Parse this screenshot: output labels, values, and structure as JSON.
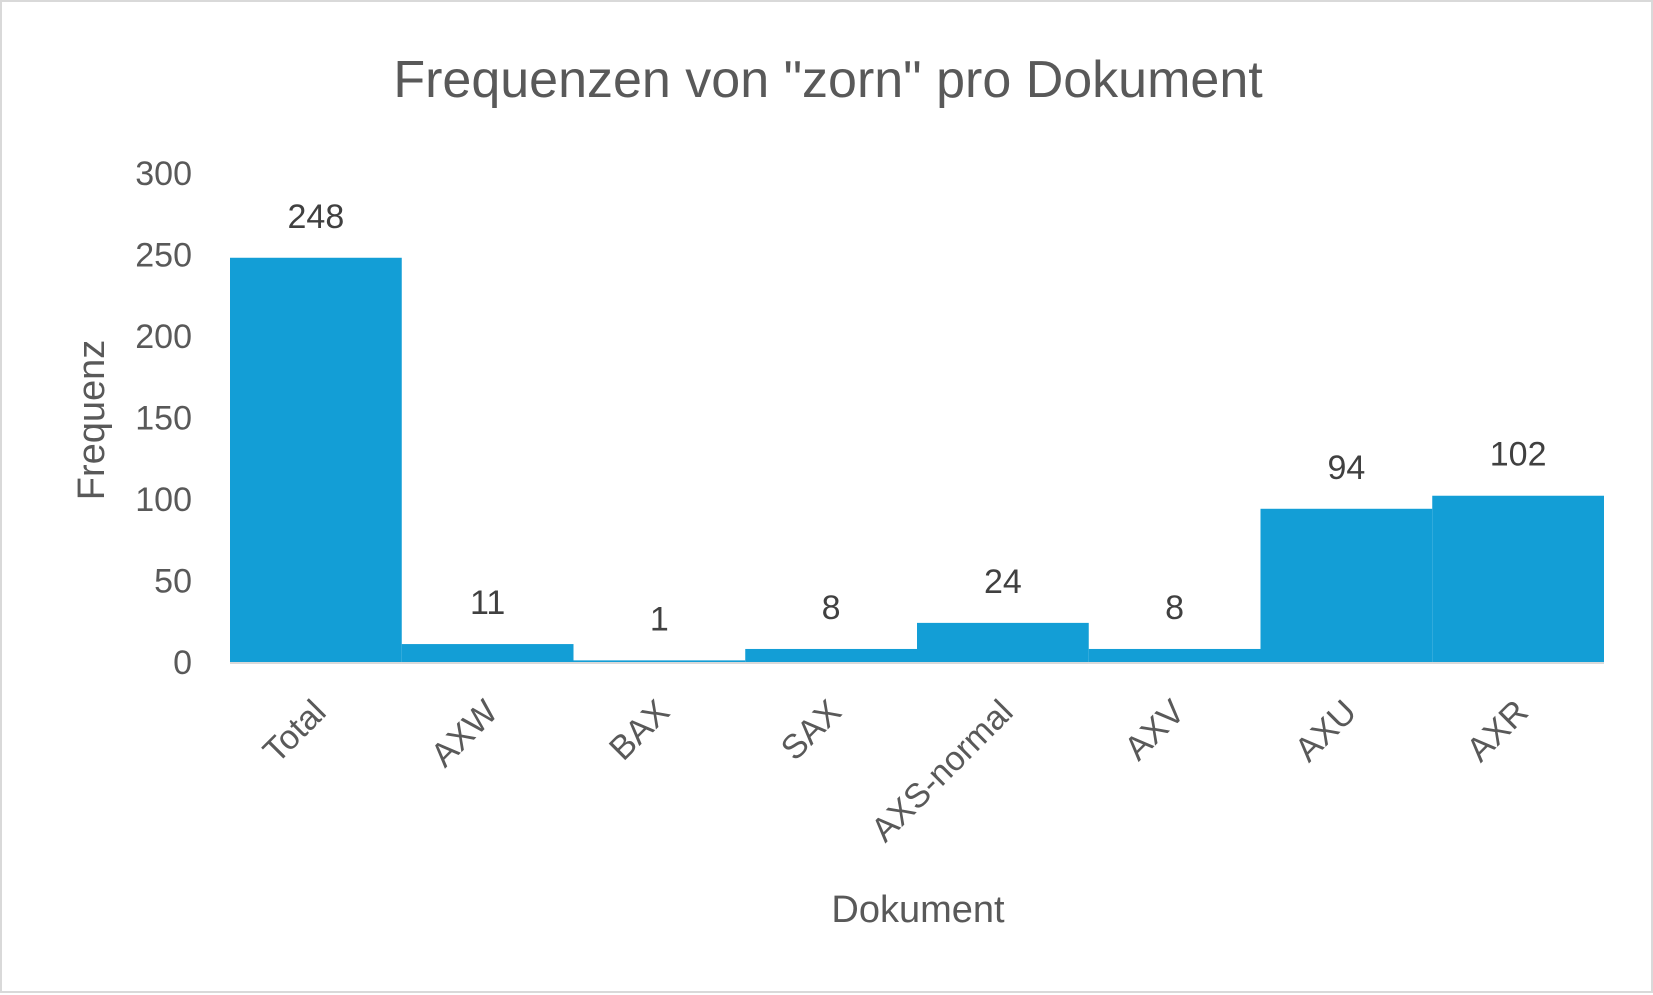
{
  "chart_data": {
    "type": "bar",
    "title": "Frequenzen von \"zorn\" pro Dokument",
    "xlabel": "Dokument",
    "ylabel": "Frequenz",
    "categories": [
      "Total",
      "AXW",
      "BAX",
      "SAX",
      "AXS-normal",
      "AXV",
      "AXU",
      "AXR"
    ],
    "values": [
      248,
      11,
      1,
      8,
      24,
      8,
      94,
      102
    ],
    "data_labels": [
      "248",
      "11",
      "1",
      "8",
      "24",
      "8",
      "94",
      "102"
    ],
    "ylim": [
      0,
      300
    ],
    "y_ticks": [
      0,
      50,
      100,
      150,
      200,
      250,
      300
    ],
    "y_tick_labels": [
      "0",
      "50",
      "100",
      "150",
      "200",
      "250",
      "300"
    ],
    "grid": false,
    "legend": "none",
    "bar_color": "#139ed6",
    "baseline_color": "#d9d9d9"
  }
}
